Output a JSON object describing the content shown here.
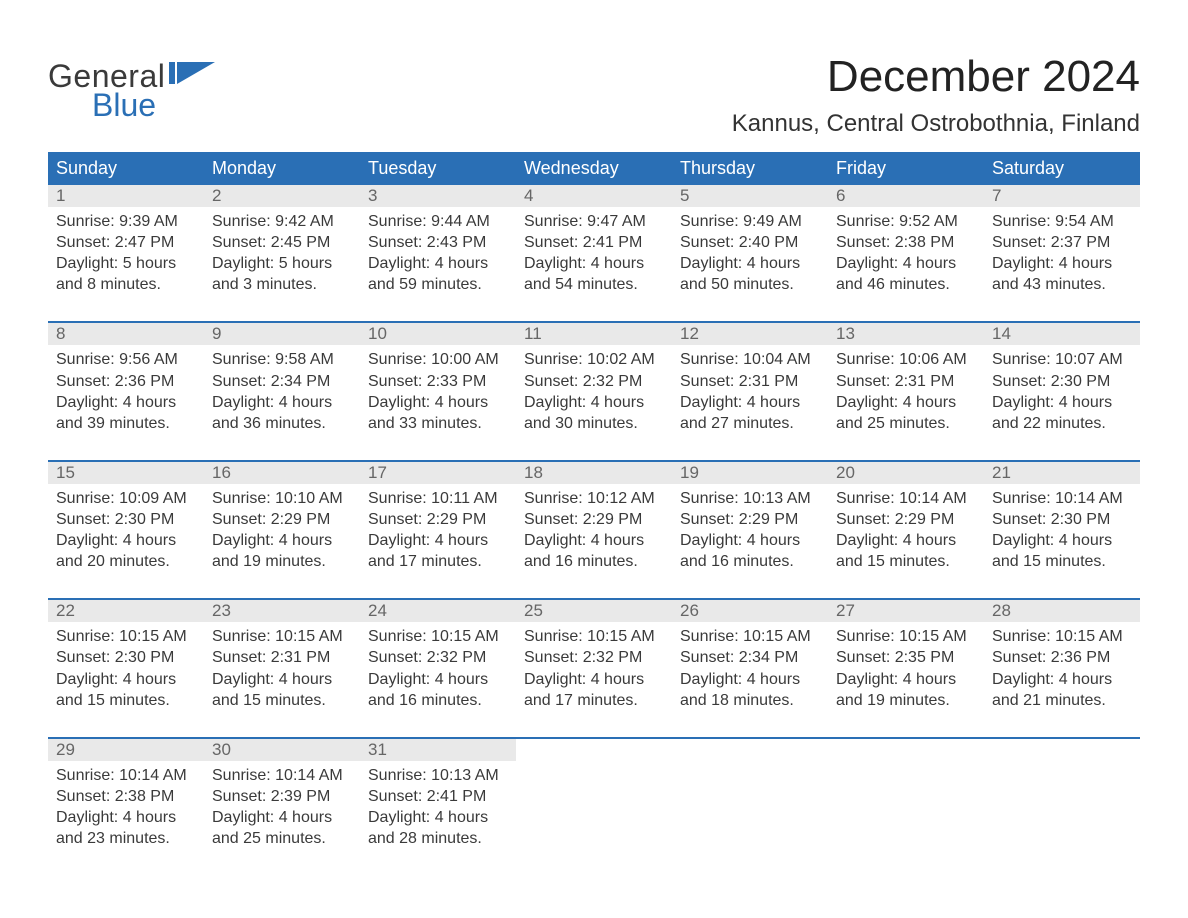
{
  "brand": {
    "word1": "General",
    "word2": "Blue",
    "flag_color": "#2a6fb5",
    "text_color_dark": "#3a3a3a"
  },
  "title": "December 2024",
  "location": "Kannus, Central Ostrobothnia, Finland",
  "colors": {
    "header_bg": "#2a6fb5",
    "header_text": "#ffffff",
    "daynum_bg": "#e9e9e9",
    "daynum_text": "#666666",
    "body_text": "#3a3a3a",
    "page_bg": "#ffffff",
    "week_rule": "#2a6fb5"
  },
  "fonts": {
    "family": "Arial",
    "title_size_pt": 33,
    "location_size_pt": 18,
    "header_size_pt": 14,
    "body_size_pt": 12
  },
  "day_headers": [
    "Sunday",
    "Monday",
    "Tuesday",
    "Wednesday",
    "Thursday",
    "Friday",
    "Saturday"
  ],
  "weeks": [
    [
      {
        "num": "1",
        "l1": "Sunrise: 9:39 AM",
        "l2": "Sunset: 2:47 PM",
        "l3": "Daylight: 5 hours",
        "l4": "and 8 minutes."
      },
      {
        "num": "2",
        "l1": "Sunrise: 9:42 AM",
        "l2": "Sunset: 2:45 PM",
        "l3": "Daylight: 5 hours",
        "l4": "and 3 minutes."
      },
      {
        "num": "3",
        "l1": "Sunrise: 9:44 AM",
        "l2": "Sunset: 2:43 PM",
        "l3": "Daylight: 4 hours",
        "l4": "and 59 minutes."
      },
      {
        "num": "4",
        "l1": "Sunrise: 9:47 AM",
        "l2": "Sunset: 2:41 PM",
        "l3": "Daylight: 4 hours",
        "l4": "and 54 minutes."
      },
      {
        "num": "5",
        "l1": "Sunrise: 9:49 AM",
        "l2": "Sunset: 2:40 PM",
        "l3": "Daylight: 4 hours",
        "l4": "and 50 minutes."
      },
      {
        "num": "6",
        "l1": "Sunrise: 9:52 AM",
        "l2": "Sunset: 2:38 PM",
        "l3": "Daylight: 4 hours",
        "l4": "and 46 minutes."
      },
      {
        "num": "7",
        "l1": "Sunrise: 9:54 AM",
        "l2": "Sunset: 2:37 PM",
        "l3": "Daylight: 4 hours",
        "l4": "and 43 minutes."
      }
    ],
    [
      {
        "num": "8",
        "l1": "Sunrise: 9:56 AM",
        "l2": "Sunset: 2:36 PM",
        "l3": "Daylight: 4 hours",
        "l4": "and 39 minutes."
      },
      {
        "num": "9",
        "l1": "Sunrise: 9:58 AM",
        "l2": "Sunset: 2:34 PM",
        "l3": "Daylight: 4 hours",
        "l4": "and 36 minutes."
      },
      {
        "num": "10",
        "l1": "Sunrise: 10:00 AM",
        "l2": "Sunset: 2:33 PM",
        "l3": "Daylight: 4 hours",
        "l4": "and 33 minutes."
      },
      {
        "num": "11",
        "l1": "Sunrise: 10:02 AM",
        "l2": "Sunset: 2:32 PM",
        "l3": "Daylight: 4 hours",
        "l4": "and 30 minutes."
      },
      {
        "num": "12",
        "l1": "Sunrise: 10:04 AM",
        "l2": "Sunset: 2:31 PM",
        "l3": "Daylight: 4 hours",
        "l4": "and 27 minutes."
      },
      {
        "num": "13",
        "l1": "Sunrise: 10:06 AM",
        "l2": "Sunset: 2:31 PM",
        "l3": "Daylight: 4 hours",
        "l4": "and 25 minutes."
      },
      {
        "num": "14",
        "l1": "Sunrise: 10:07 AM",
        "l2": "Sunset: 2:30 PM",
        "l3": "Daylight: 4 hours",
        "l4": "and 22 minutes."
      }
    ],
    [
      {
        "num": "15",
        "l1": "Sunrise: 10:09 AM",
        "l2": "Sunset: 2:30 PM",
        "l3": "Daylight: 4 hours",
        "l4": "and 20 minutes."
      },
      {
        "num": "16",
        "l1": "Sunrise: 10:10 AM",
        "l2": "Sunset: 2:29 PM",
        "l3": "Daylight: 4 hours",
        "l4": "and 19 minutes."
      },
      {
        "num": "17",
        "l1": "Sunrise: 10:11 AM",
        "l2": "Sunset: 2:29 PM",
        "l3": "Daylight: 4 hours",
        "l4": "and 17 minutes."
      },
      {
        "num": "18",
        "l1": "Sunrise: 10:12 AM",
        "l2": "Sunset: 2:29 PM",
        "l3": "Daylight: 4 hours",
        "l4": "and 16 minutes."
      },
      {
        "num": "19",
        "l1": "Sunrise: 10:13 AM",
        "l2": "Sunset: 2:29 PM",
        "l3": "Daylight: 4 hours",
        "l4": "and 16 minutes."
      },
      {
        "num": "20",
        "l1": "Sunrise: 10:14 AM",
        "l2": "Sunset: 2:29 PM",
        "l3": "Daylight: 4 hours",
        "l4": "and 15 minutes."
      },
      {
        "num": "21",
        "l1": "Sunrise: 10:14 AM",
        "l2": "Sunset: 2:30 PM",
        "l3": "Daylight: 4 hours",
        "l4": "and 15 minutes."
      }
    ],
    [
      {
        "num": "22",
        "l1": "Sunrise: 10:15 AM",
        "l2": "Sunset: 2:30 PM",
        "l3": "Daylight: 4 hours",
        "l4": "and 15 minutes."
      },
      {
        "num": "23",
        "l1": "Sunrise: 10:15 AM",
        "l2": "Sunset: 2:31 PM",
        "l3": "Daylight: 4 hours",
        "l4": "and 15 minutes."
      },
      {
        "num": "24",
        "l1": "Sunrise: 10:15 AM",
        "l2": "Sunset: 2:32 PM",
        "l3": "Daylight: 4 hours",
        "l4": "and 16 minutes."
      },
      {
        "num": "25",
        "l1": "Sunrise: 10:15 AM",
        "l2": "Sunset: 2:32 PM",
        "l3": "Daylight: 4 hours",
        "l4": "and 17 minutes."
      },
      {
        "num": "26",
        "l1": "Sunrise: 10:15 AM",
        "l2": "Sunset: 2:34 PM",
        "l3": "Daylight: 4 hours",
        "l4": "and 18 minutes."
      },
      {
        "num": "27",
        "l1": "Sunrise: 10:15 AM",
        "l2": "Sunset: 2:35 PM",
        "l3": "Daylight: 4 hours",
        "l4": "and 19 minutes."
      },
      {
        "num": "28",
        "l1": "Sunrise: 10:15 AM",
        "l2": "Sunset: 2:36 PM",
        "l3": "Daylight: 4 hours",
        "l4": "and 21 minutes."
      }
    ],
    [
      {
        "num": "29",
        "l1": "Sunrise: 10:14 AM",
        "l2": "Sunset: 2:38 PM",
        "l3": "Daylight: 4 hours",
        "l4": "and 23 minutes."
      },
      {
        "num": "30",
        "l1": "Sunrise: 10:14 AM",
        "l2": "Sunset: 2:39 PM",
        "l3": "Daylight: 4 hours",
        "l4": "and 25 minutes."
      },
      {
        "num": "31",
        "l1": "Sunrise: 10:13 AM",
        "l2": "Sunset: 2:41 PM",
        "l3": "Daylight: 4 hours",
        "l4": "and 28 minutes."
      },
      null,
      null,
      null,
      null
    ]
  ]
}
